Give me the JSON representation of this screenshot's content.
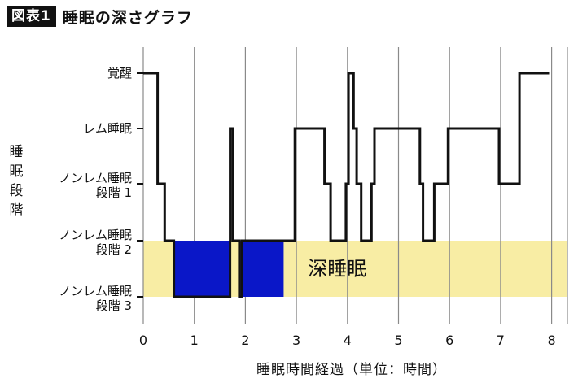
{
  "header": {
    "badge": "図表1",
    "title": "睡眠の深さグラフ"
  },
  "chart_data": {
    "type": "line",
    "step": true,
    "title": "睡眠の深さグラフ",
    "xlabel": "睡眠時間経過（単位：時間）",
    "ylabel": "睡眠段階",
    "xlim": [
      0,
      8.3
    ],
    "x_ticks": [
      0,
      1,
      2,
      3,
      4,
      5,
      6,
      7,
      8
    ],
    "grid_x": true,
    "y_levels": [
      {
        "level": 5,
        "label": "覚醒",
        "label2": ""
      },
      {
        "level": 4,
        "label": "レム睡眠",
        "label2": ""
      },
      {
        "level": 3,
        "label": "ノンレム睡眠",
        "label2": "段階 1"
      },
      {
        "level": 2,
        "label": "ノンレム睡眠",
        "label2": "段階 2"
      },
      {
        "level": 1,
        "label": "ノンレム睡眠",
        "label2": "段階 3"
      }
    ],
    "band": {
      "from_level": 1,
      "to_level": 2,
      "label": "深睡眠",
      "color": "#f8eda4"
    },
    "deep_blocks": {
      "color": "#0a17c8",
      "ranges": [
        [
          0.6,
          1.7
        ],
        [
          1.9,
          2.75
        ]
      ]
    },
    "line_color": "#111111",
    "series": [
      {
        "x": [
          0,
          0.28,
          0.28,
          0.42,
          0.42,
          0.6,
          0.6,
          1.7,
          1.7,
          1.75,
          1.75,
          1.88,
          1.88,
          1.93,
          1.93,
          2.75,
          2.75,
          2.97,
          2.97,
          3.55,
          3.55,
          3.67,
          3.67,
          3.97,
          3.97,
          4.02,
          4.02,
          4.12,
          4.12,
          4.18,
          4.18,
          4.27,
          4.27,
          4.47,
          4.47,
          4.53,
          4.53,
          5.42,
          5.42,
          5.48,
          5.48,
          5.7,
          5.7,
          5.75,
          5.75,
          5.97,
          5.97,
          6.97,
          6.97,
          7.37,
          7.37,
          7.95
        ],
        "y": [
          5,
          5,
          3,
          3,
          2,
          2,
          1,
          1,
          4,
          4,
          2,
          2,
          1,
          1,
          2,
          2,
          2,
          2,
          4,
          4,
          3,
          3,
          2,
          2,
          3,
          3,
          5,
          5,
          4,
          4,
          3,
          3,
          2,
          2,
          3,
          3,
          4,
          4,
          3,
          3,
          2,
          2,
          3,
          3,
          3,
          3,
          4,
          4,
          3,
          3,
          5,
          5
        ]
      }
    ]
  }
}
